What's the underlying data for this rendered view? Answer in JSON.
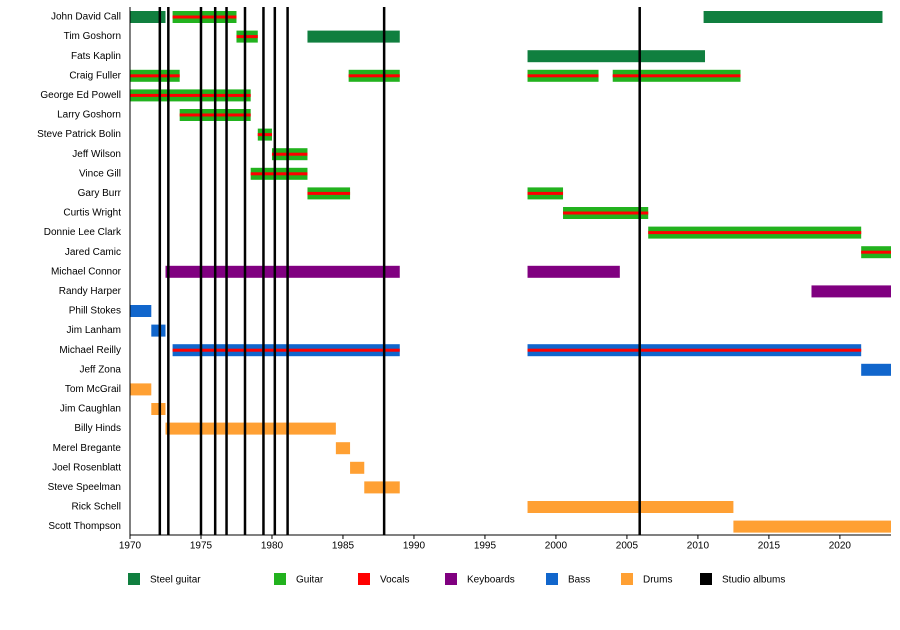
{
  "chart_data": {
    "type": "timeline",
    "xlim": [
      1970,
      2023.6
    ],
    "xticks": [
      1970,
      1975,
      1980,
      1985,
      1990,
      1995,
      2000,
      2005,
      2010,
      2015,
      2020
    ],
    "series": [
      {
        "name": "Steel guitar",
        "color": "#107f3f"
      },
      {
        "name": "Guitar",
        "color": "#22b21e"
      },
      {
        "name": "Vocals",
        "color": "#ff0000"
      },
      {
        "name": "Keyboards",
        "color": "#800080"
      },
      {
        "name": "Bass",
        "color": "#1166cc"
      },
      {
        "name": "Drums",
        "color": "#ffa033"
      },
      {
        "name": "Studio albums",
        "color": "#000000",
        "values": [
          1972.1,
          1972.7,
          1975,
          1976,
          1976.8,
          1978.1,
          1979.4,
          1980.2,
          1981.1,
          1987.9,
          2005.9
        ]
      }
    ],
    "members": [
      {
        "name": "John David Call",
        "periods": [
          {
            "start": 1970,
            "end": 1972.5,
            "roles": [
              "Steel guitar"
            ]
          },
          {
            "start": 1973,
            "end": 1977.5,
            "roles": [
              "Guitar",
              "Vocals"
            ]
          },
          {
            "start": 2010.4,
            "end": 2023,
            "roles": [
              "Steel guitar"
            ]
          }
        ]
      },
      {
        "name": "Tim Goshorn",
        "periods": [
          {
            "start": 1977.5,
            "end": 1979,
            "roles": [
              "Guitar",
              "Vocals"
            ]
          },
          {
            "start": 1982.5,
            "end": 1989,
            "roles": [
              "Steel guitar"
            ]
          }
        ]
      },
      {
        "name": "Fats Kaplin",
        "periods": [
          {
            "start": 1998,
            "end": 2010.5,
            "roles": [
              "Steel guitar"
            ]
          }
        ]
      },
      {
        "name": "Craig Fuller",
        "periods": [
          {
            "start": 1970,
            "end": 1973.5,
            "roles": [
              "Guitar",
              "Vocals"
            ]
          },
          {
            "start": 1985.4,
            "end": 1989,
            "roles": [
              "Guitar",
              "Vocals"
            ]
          },
          {
            "start": 1998,
            "end": 2003,
            "roles": [
              "Guitar",
              "Vocals"
            ]
          },
          {
            "start": 2004,
            "end": 2013,
            "roles": [
              "Guitar",
              "Vocals"
            ]
          }
        ]
      },
      {
        "name": "George Ed Powell",
        "periods": [
          {
            "start": 1970,
            "end": 1978.5,
            "roles": [
              "Guitar",
              "Vocals"
            ]
          }
        ]
      },
      {
        "name": "Larry Goshorn",
        "periods": [
          {
            "start": 1973.5,
            "end": 1978.5,
            "roles": [
              "Guitar",
              "Vocals"
            ]
          }
        ]
      },
      {
        "name": "Steve Patrick Bolin",
        "periods": [
          {
            "start": 1979,
            "end": 1980,
            "roles": [
              "Guitar",
              "Vocals"
            ]
          }
        ]
      },
      {
        "name": "Jeff Wilson",
        "periods": [
          {
            "start": 1980,
            "end": 1982.5,
            "roles": [
              "Guitar",
              "Vocals"
            ]
          }
        ]
      },
      {
        "name": "Vince Gill",
        "periods": [
          {
            "start": 1978.5,
            "end": 1982.5,
            "roles": [
              "Guitar",
              "Vocals"
            ]
          }
        ]
      },
      {
        "name": "Gary Burr",
        "periods": [
          {
            "start": 1982.5,
            "end": 1985.5,
            "roles": [
              "Guitar",
              "Vocals"
            ]
          },
          {
            "start": 1998,
            "end": 2000.5,
            "roles": [
              "Guitar",
              "Vocals"
            ]
          }
        ]
      },
      {
        "name": "Curtis Wright",
        "periods": [
          {
            "start": 2000.5,
            "end": 2006.5,
            "roles": [
              "Guitar",
              "Vocals"
            ]
          }
        ]
      },
      {
        "name": "Donnie Lee Clark",
        "periods": [
          {
            "start": 2006.5,
            "end": 2021.5,
            "roles": [
              "Guitar",
              "Vocals"
            ]
          }
        ]
      },
      {
        "name": "Jared Camic",
        "periods": [
          {
            "start": 2021.5,
            "end": 2023.6,
            "roles": [
              "Guitar",
              "Vocals"
            ]
          }
        ]
      },
      {
        "name": "Michael Connor",
        "periods": [
          {
            "start": 1972.5,
            "end": 1989,
            "roles": [
              "Keyboards"
            ]
          },
          {
            "start": 1998,
            "end": 2004.5,
            "roles": [
              "Keyboards"
            ]
          }
        ]
      },
      {
        "name": "Randy Harper",
        "periods": [
          {
            "start": 2018,
            "end": 2023.6,
            "roles": [
              "Keyboards"
            ]
          }
        ]
      },
      {
        "name": "Phill Stokes",
        "periods": [
          {
            "start": 1970,
            "end": 1971.5,
            "roles": [
              "Bass"
            ]
          }
        ]
      },
      {
        "name": "Jim Lanham",
        "periods": [
          {
            "start": 1971.5,
            "end": 1972.5,
            "roles": [
              "Bass"
            ]
          }
        ]
      },
      {
        "name": "Michael Reilly",
        "periods": [
          {
            "start": 1973,
            "end": 1989,
            "roles": [
              "Bass",
              "Vocals"
            ]
          },
          {
            "start": 1998,
            "end": 2021.5,
            "roles": [
              "Bass",
              "Vocals"
            ]
          }
        ]
      },
      {
        "name": "Jeff Zona",
        "periods": [
          {
            "start": 2021.5,
            "end": 2023.6,
            "roles": [
              "Bass"
            ]
          }
        ]
      },
      {
        "name": "Tom McGrail",
        "periods": [
          {
            "start": 1970,
            "end": 1971.5,
            "roles": [
              "Drums"
            ]
          }
        ]
      },
      {
        "name": "Jim Caughlan",
        "periods": [
          {
            "start": 1971.5,
            "end": 1972.5,
            "roles": [
              "Drums"
            ]
          }
        ]
      },
      {
        "name": "Billy Hinds",
        "periods": [
          {
            "start": 1972.5,
            "end": 1984.5,
            "roles": [
              "Drums"
            ]
          }
        ]
      },
      {
        "name": "Merel Bregante",
        "periods": [
          {
            "start": 1984.5,
            "end": 1985.5,
            "roles": [
              "Drums"
            ]
          }
        ]
      },
      {
        "name": "Joel Rosenblatt",
        "periods": [
          {
            "start": 1985.5,
            "end": 1986.5,
            "roles": [
              "Drums"
            ]
          }
        ]
      },
      {
        "name": "Steve Speelman",
        "periods": [
          {
            "start": 1986.5,
            "end": 1989,
            "roles": [
              "Drums"
            ]
          }
        ]
      },
      {
        "name": "Rick Schell",
        "periods": [
          {
            "start": 1998,
            "end": 2012.5,
            "roles": [
              "Drums"
            ]
          }
        ]
      },
      {
        "name": "Scott Thompson",
        "periods": [
          {
            "start": 2012.5,
            "end": 2023.6,
            "roles": [
              "Drums"
            ]
          }
        ]
      }
    ]
  }
}
